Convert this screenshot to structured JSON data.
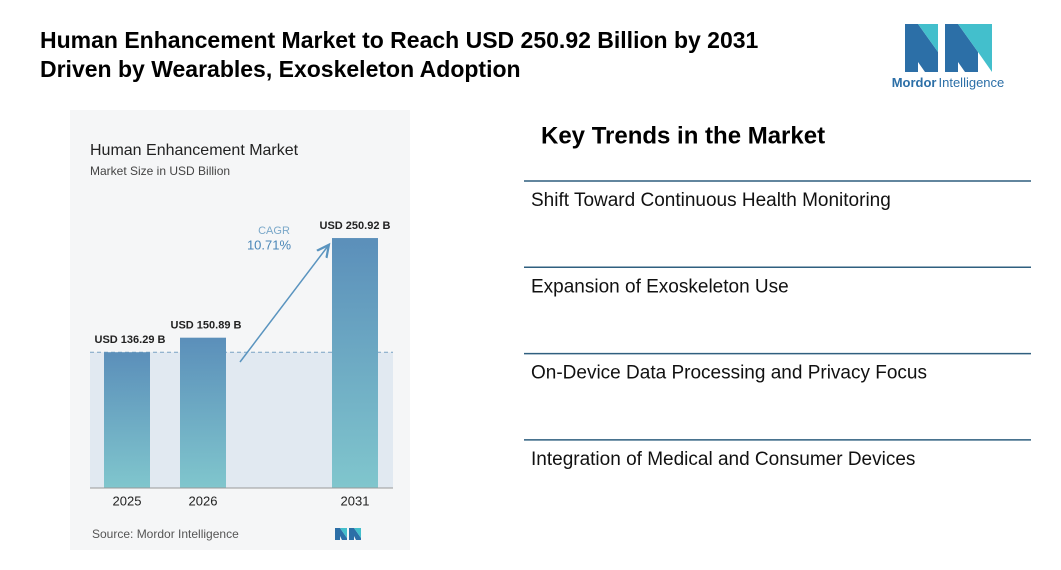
{
  "header": {
    "title_lines": [
      "Human Enhancement Market to Reach USD 250.92 Billion by 2031",
      "Driven by Wearables, Exoskeleton Adoption"
    ]
  },
  "logo": {
    "brand": "Mordor",
    "suffix": "Intelligence"
  },
  "chart_data": {
    "type": "bar",
    "title": "Human Enhancement Market",
    "subtitle": "Market Size in USD Billion",
    "categories": [
      "2025",
      "2026",
      "2031"
    ],
    "values": [
      136.29,
      150.89,
      250.92
    ],
    "value_labels": [
      "USD 136.29 B",
      "USD 150.89 B",
      "USD 250.92 B"
    ],
    "annotation": {
      "label": "CAGR",
      "text": "10.71%"
    },
    "source": "Source: Mordor Intelligence",
    "ylim": [
      0,
      260
    ],
    "color_top": "#5b8fba",
    "color_bottom": "#80c6cd"
  },
  "key_trends": {
    "title": "Key Trends in the Market",
    "items": [
      "Shift Toward Continuous Health Monitoring",
      "Expansion of Exoskeleton Use",
      "On-Device Data Processing and Privacy Focus",
      "Integration of Medical and Consumer Devices"
    ]
  }
}
